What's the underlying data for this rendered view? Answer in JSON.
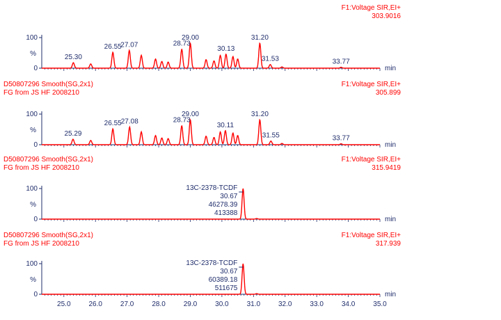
{
  "colors": {
    "trace": "#ff0000",
    "header": "#ff0000",
    "peak_label": "#1f2d6b",
    "axis": "#1f2d6b"
  },
  "chart_data": {
    "type": "line",
    "x_unit": "min",
    "x_range": [
      24.3,
      35.0
    ],
    "x_ticks": [
      "25.0",
      "26.0",
      "27.0",
      "28.0",
      "29.0",
      "30.0",
      "31.0",
      "32.0",
      "33.0",
      "34.0",
      "35.0"
    ],
    "y_ticks": [
      "0",
      "%",
      "100"
    ],
    "panels": [
      {
        "sample_id": "",
        "sample_desc": "",
        "function_label": "F1:Voltage SIR,EI+",
        "mass": "303.9016",
        "peaks": [
          [
            25.3,
            0.18
          ],
          [
            25.85,
            0.14
          ],
          [
            26.55,
            0.52
          ],
          [
            27.07,
            0.58
          ],
          [
            27.45,
            0.42
          ],
          [
            27.9,
            0.3
          ],
          [
            28.1,
            0.22
          ],
          [
            28.3,
            0.2
          ],
          [
            28.73,
            0.62
          ],
          [
            29.0,
            0.82
          ],
          [
            29.5,
            0.28
          ],
          [
            29.75,
            0.24
          ],
          [
            29.95,
            0.42
          ],
          [
            30.13,
            0.46
          ],
          [
            30.35,
            0.38
          ],
          [
            30.5,
            0.3
          ],
          [
            31.2,
            0.82
          ],
          [
            31.53,
            0.12
          ],
          [
            31.9,
            0.04
          ],
          [
            33.77,
            0.03
          ]
        ],
        "peak_labels": [
          {
            "rt": "25.30",
            "x": 25.3,
            "y": 0.18
          },
          {
            "rt": "26.55",
            "x": 26.55,
            "y": 0.52
          },
          {
            "rt": "27.07",
            "x": 27.07,
            "y": 0.58
          },
          {
            "rt": "28.73",
            "x": 28.73,
            "y": 0.62
          },
          {
            "rt": "29.00",
            "x": 29.0,
            "y": 0.82
          },
          {
            "rt": "30.13",
            "x": 30.13,
            "y": 0.46
          },
          {
            "rt": "31.20",
            "x": 31.2,
            "y": 0.82
          },
          {
            "rt": "31.53",
            "x": 31.53,
            "y": 0.12
          },
          {
            "rt": "33.77",
            "x": 33.77,
            "y": 0.03
          }
        ],
        "annotation": []
      },
      {
        "sample_id": "D50807296 Smooth(SG,2x1)",
        "sample_desc": "FG from JS HF 2008210",
        "function_label": "F1:Voltage SIR,EI+",
        "mass": "305.899",
        "peaks": [
          [
            25.29,
            0.18
          ],
          [
            25.85,
            0.14
          ],
          [
            26.55,
            0.52
          ],
          [
            27.08,
            0.58
          ],
          [
            27.45,
            0.42
          ],
          [
            27.9,
            0.3
          ],
          [
            28.1,
            0.22
          ],
          [
            28.3,
            0.2
          ],
          [
            28.73,
            0.62
          ],
          [
            29.0,
            0.82
          ],
          [
            29.5,
            0.28
          ],
          [
            29.75,
            0.24
          ],
          [
            29.95,
            0.42
          ],
          [
            30.11,
            0.46
          ],
          [
            30.35,
            0.38
          ],
          [
            30.5,
            0.3
          ],
          [
            31.2,
            0.82
          ],
          [
            31.55,
            0.12
          ],
          [
            31.9,
            0.04
          ],
          [
            33.77,
            0.03
          ]
        ],
        "peak_labels": [
          {
            "rt": "25.29",
            "x": 25.29,
            "y": 0.18
          },
          {
            "rt": "26.55",
            "x": 26.55,
            "y": 0.52
          },
          {
            "rt": "27.08",
            "x": 27.08,
            "y": 0.58
          },
          {
            "rt": "28.73",
            "x": 28.73,
            "y": 0.62
          },
          {
            "rt": "29.00",
            "x": 29.0,
            "y": 0.82
          },
          {
            "rt": "30.11",
            "x": 30.11,
            "y": 0.46
          },
          {
            "rt": "31.20",
            "x": 31.2,
            "y": 0.82
          },
          {
            "rt": "31.55",
            "x": 31.55,
            "y": 0.12
          },
          {
            "rt": "33.77",
            "x": 33.77,
            "y": 0.03
          }
        ],
        "annotation": []
      },
      {
        "sample_id": "D50807296 Smooth(SG,2x1)",
        "sample_desc": "FG from JS HF 2008210",
        "function_label": "F1:Voltage SIR,EI+",
        "mass": "315.9419",
        "peaks": [
          [
            30.67,
            1.0
          ],
          [
            31.1,
            0.02
          ]
        ],
        "peak_labels": [],
        "annotation": [
          "13C-2378-TCDF",
          "30.67",
          "46278.39",
          "413388"
        ],
        "annotation_x": 30.67
      },
      {
        "sample_id": "D50807296 Smooth(SG,2x1)",
        "sample_desc": "FG from JS HF 2008210",
        "function_label": "F1:Voltage SIR,EI+",
        "mass": "317.939",
        "peaks": [
          [
            30.67,
            1.0
          ],
          [
            31.1,
            0.02
          ]
        ],
        "peak_labels": [],
        "annotation": [
          "13C-2378-TCDF",
          "30.67",
          "60389.18",
          "511675"
        ],
        "annotation_x": 30.67
      }
    ]
  }
}
